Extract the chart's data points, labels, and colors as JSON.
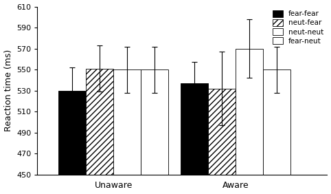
{
  "groups": [
    "Unaware",
    "Aware"
  ],
  "conditions": [
    "fear-fear",
    "neut-fear",
    "neut-neut",
    "fear-neut"
  ],
  "values": {
    "Unaware": [
      530,
      551,
      550,
      550
    ],
    "Aware": [
      537,
      532,
      570,
      550
    ]
  },
  "errors": {
    "Unaware": [
      22,
      22,
      22,
      22
    ],
    "Aware": [
      20,
      35,
      28,
      22
    ]
  },
  "ylim": [
    450,
    610
  ],
  "yticks": [
    450,
    470,
    490,
    510,
    530,
    550,
    570,
    590,
    610
  ],
  "ylabel": "Reaction time (ms)",
  "legend_labels": [
    "fear-fear",
    "neut-fear",
    "neut-neut",
    "fear-neut"
  ],
  "face_colors": [
    "black",
    "white",
    "white",
    "white"
  ],
  "hatches": [
    "",
    "////",
    "",
    "===="
  ],
  "bar_width": 0.09,
  "group_centers": [
    0.25,
    0.65
  ],
  "xlim": [
    0.0,
    0.95
  ]
}
